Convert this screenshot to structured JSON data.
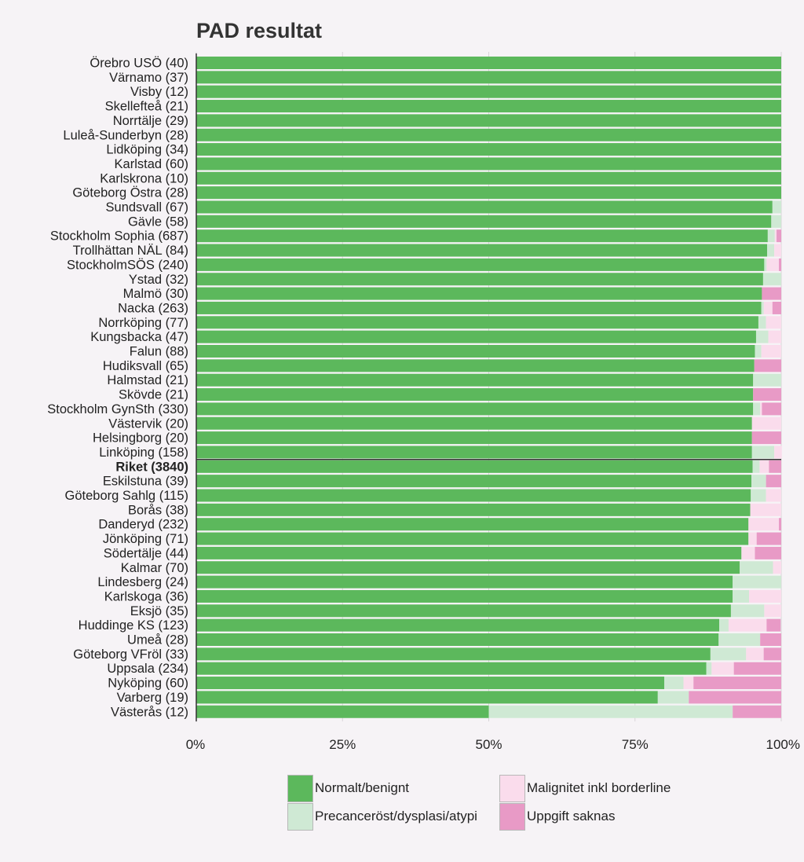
{
  "chart_data": {
    "type": "bar",
    "orientation": "horizontal",
    "stacked": true,
    "title": "PAD resultat",
    "categories": [
      "Örebro USÖ (40)",
      "Värnamo (37)",
      "Visby (12)",
      "Skellefteå (21)",
      "Norrtälje (29)",
      "Luleå-Sunderbyn (28)",
      "Lidköping (34)",
      "Karlstad (60)",
      "Karlskrona (10)",
      "Göteborg Östra (28)",
      "Sundsvall (67)",
      "Gävle (58)",
      "Stockholm Sophia (687)",
      "Trollhättan NÄL (84)",
      "StockholmSÖS (240)",
      "Ystad (32)",
      "Malmö (30)",
      "Nacka (263)",
      "Norrköping (77)",
      "Kungsbacka (47)",
      "Falun (88)",
      "Hudiksvall (65)",
      "Halmstad (21)",
      "Skövde (21)",
      "Stockholm GynSth (330)",
      "Västervik (20)",
      "Helsingborg (20)",
      "Linköping (158)",
      "Riket (3840)",
      "Eskilstuna (39)",
      "Göteborg Sahlg (115)",
      "Borås (38)",
      "Danderyd (232)",
      "Jönköping (71)",
      "Södertälje (44)",
      "Kalmar (70)",
      "Lindesberg (24)",
      "Karlskoga (36)",
      "Eksjö (35)",
      "Huddinge KS (123)",
      "Umeå (28)",
      "Göteborg VFröl (33)",
      "Uppsala (234)",
      "Nyköping (60)",
      "Varberg (19)",
      "Västerås (12)"
    ],
    "highlight_category": "Riket (3840)",
    "series": [
      {
        "name": "Normalt/benignt",
        "color": "#5cb85c",
        "values": [
          100,
          100,
          100,
          100,
          100,
          100,
          100,
          100,
          100,
          100,
          98.5,
          98.3,
          97.7,
          97.6,
          97.1,
          96.9,
          96.7,
          96.6,
          96.1,
          95.7,
          95.5,
          95.4,
          95.2,
          95.2,
          95.2,
          95,
          95,
          95,
          95.1,
          94.9,
          94.8,
          94.7,
          94.4,
          94.4,
          93.2,
          92.9,
          91.7,
          91.7,
          91.4,
          89.4,
          89.3,
          87.9,
          87.2,
          80,
          78.9,
          50
        ]
      },
      {
        "name": "Precanceröst/dysplasi/atypi",
        "color": "#cfe9d4",
        "values": [
          0,
          0,
          0,
          0,
          0,
          0,
          0,
          0,
          0,
          0,
          1.5,
          1.7,
          1.2,
          1.2,
          0.4,
          3.1,
          0,
          0.4,
          1.3,
          2.1,
          1.1,
          0,
          4.8,
          0,
          1.2,
          0,
          0,
          3.8,
          1.2,
          2.5,
          2.6,
          0,
          0,
          0,
          0,
          5.7,
          8.3,
          2.8,
          5.7,
          1.6,
          7.1,
          6.1,
          0.9,
          3.3,
          5.3,
          41.7
        ]
      },
      {
        "name": "Malignitet inkl borderline",
        "color": "#fadcec",
        "values": [
          0,
          0,
          0,
          0,
          0,
          0,
          0,
          0,
          0,
          0,
          0,
          0,
          0.3,
          1.2,
          2.1,
          0,
          0,
          1.5,
          2.6,
          2.2,
          3.4,
          0,
          0,
          0,
          0.3,
          5,
          0,
          1.3,
          1.6,
          0,
          2.6,
          5.3,
          5.2,
          1.4,
          2.3,
          1.4,
          0,
          5.5,
          2.9,
          6.5,
          0,
          3,
          3.8,
          1.7,
          0,
          0
        ]
      },
      {
        "name": "Uppgift saknas",
        "color": "#e89ac6",
        "values": [
          0,
          0,
          0,
          0,
          0,
          0,
          0,
          0,
          0,
          0,
          0,
          0,
          0.8,
          0,
          0.4,
          0,
          3.3,
          1.5,
          0,
          0,
          0,
          4.6,
          0,
          4.8,
          3.3,
          0,
          5,
          0,
          2.1,
          2.6,
          0,
          0,
          0.4,
          4.2,
          4.5,
          0,
          0,
          0,
          0,
          2.4,
          3.6,
          3,
          8.1,
          15,
          15.8,
          8.3
        ]
      }
    ],
    "x_ticks": [
      "0%",
      "25%",
      "50%",
      "75%",
      "100%"
    ],
    "xlim": [
      0,
      100
    ],
    "grid": "vertical",
    "legend_position": "bottom"
  }
}
